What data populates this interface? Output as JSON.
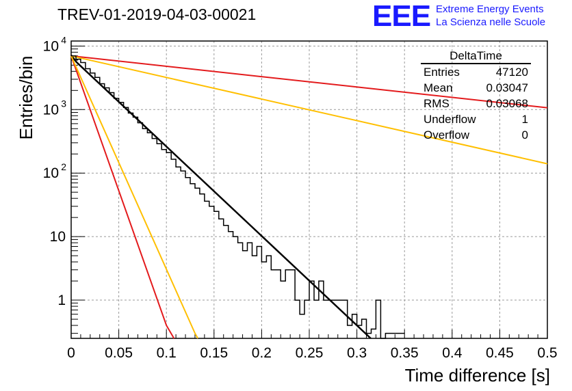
{
  "header": {
    "title": "TREV-01-2019-04-03-00021",
    "logo_text": "EEE",
    "logo_line1": "Extreme Energy Events",
    "logo_line2": "La Scienza nelle Scuole"
  },
  "stats_box": {
    "name": "DeltaTime",
    "rows": [
      {
        "label": "Entries",
        "value": "47120"
      },
      {
        "label": "Mean",
        "value": "0.03047"
      },
      {
        "label": "RMS",
        "value": "0.03068"
      },
      {
        "label": "Underflow",
        "value": "1"
      },
      {
        "label": "Overflow",
        "value": "0"
      }
    ]
  },
  "colors": {
    "histogram": "#000000",
    "fit": "#000000",
    "red_curve": "#e31a1c",
    "orange_curve": "#ffbf00",
    "grid": "#999999"
  },
  "chart_data": {
    "type": "line",
    "xlabel": "Time difference [s]",
    "ylabel": "Entries/bin",
    "xlim": [
      0,
      0.5
    ],
    "ylim": [
      0.25,
      12000
    ],
    "yscale": "log",
    "grid": true,
    "x_ticks": [
      "0",
      "0.05",
      "0.1",
      "0.15",
      "0.2",
      "0.25",
      "0.3",
      "0.35",
      "0.4",
      "0.45",
      "0.5"
    ],
    "y_ticks": [
      {
        "value": 1,
        "label": "1"
      },
      {
        "value": 10,
        "label": "10"
      },
      {
        "value": 100,
        "label": "10",
        "exp": "2"
      },
      {
        "value": 1000,
        "label": "10",
        "exp": "3"
      },
      {
        "value": 10000,
        "label": "10",
        "exp": "4"
      }
    ],
    "histogram": {
      "bin_width": 0.005,
      "x_start": 0,
      "values": [
        7000,
        6200,
        5500,
        4400,
        3750,
        3200,
        2550,
        2200,
        1850,
        1500,
        1300,
        1080,
        880,
        760,
        620,
        500,
        430,
        350,
        290,
        235,
        210,
        165,
        125,
        108,
        85,
        68,
        58,
        47,
        36,
        30,
        25,
        19,
        15,
        12,
        10,
        8,
        6,
        8,
        5,
        7,
        4,
        5,
        3,
        3,
        2,
        3,
        3,
        1,
        0.6,
        1,
        2,
        1,
        2,
        1,
        1,
        1,
        1,
        1,
        0.4,
        0.6,
        0.4,
        0.5,
        0.3,
        0.35,
        1,
        0.2,
        0.3,
        0.3,
        0.3,
        0.3
      ]
    },
    "series": [
      {
        "x": [
          0,
          0.0055,
          0.3145
        ],
        "y": [
          7200,
          5600,
          0.25
        ]
      },
      {
        "x": [
          0,
          0.1,
          0.108
        ],
        "y": [
          7000,
          0.4,
          0.25
        ]
      },
      {
        "x": [
          0,
          0.13,
          0.133
        ],
        "y": [
          7000,
          0.3,
          0.25
        ]
      },
      {
        "x": [
          0,
          0.5
        ],
        "y": [
          7000,
          1070
        ]
      },
      {
        "x": [
          0,
          0.5
        ],
        "y": [
          7000,
          140
        ]
      }
    ]
  }
}
